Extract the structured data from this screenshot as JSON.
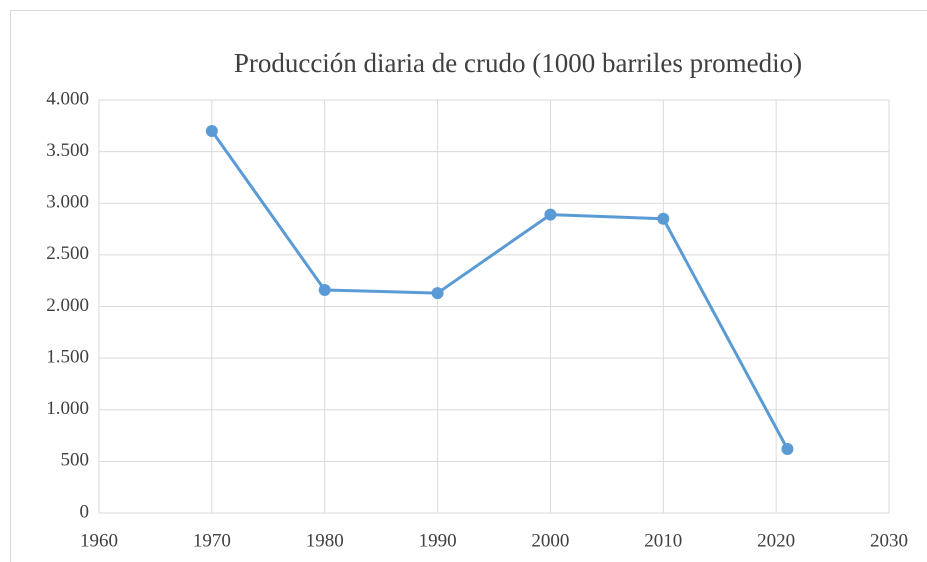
{
  "chart_data": {
    "type": "line",
    "title": "Producción diaria de crudo (1000 barriles promedio)",
    "x": [
      1970,
      1980,
      1990,
      2000,
      2010,
      2021
    ],
    "series": [
      {
        "color": "#5b9bd5",
        "values": [
          3700,
          2160,
          2130,
          2890,
          2850,
          620
        ]
      }
    ],
    "xlim": [
      1960,
      2030
    ],
    "xticks": [
      1960,
      1970,
      1980,
      1990,
      2000,
      2010,
      2020,
      2030
    ],
    "ylim": [
      0,
      4000
    ],
    "yticks": [
      0,
      500,
      {
        "value": 1000,
        "label": "1.000"
      },
      {
        "value": 1500,
        "label": "1.500"
      },
      {
        "value": 2000,
        "label": "2.000"
      },
      {
        "value": 2500,
        "label": "2.500"
      },
      {
        "value": 3000,
        "label": "3.000"
      },
      {
        "value": 3500,
        "label": "3.500"
      },
      {
        "value": 4000,
        "label": "4.000"
      }
    ],
    "grid": true
  }
}
